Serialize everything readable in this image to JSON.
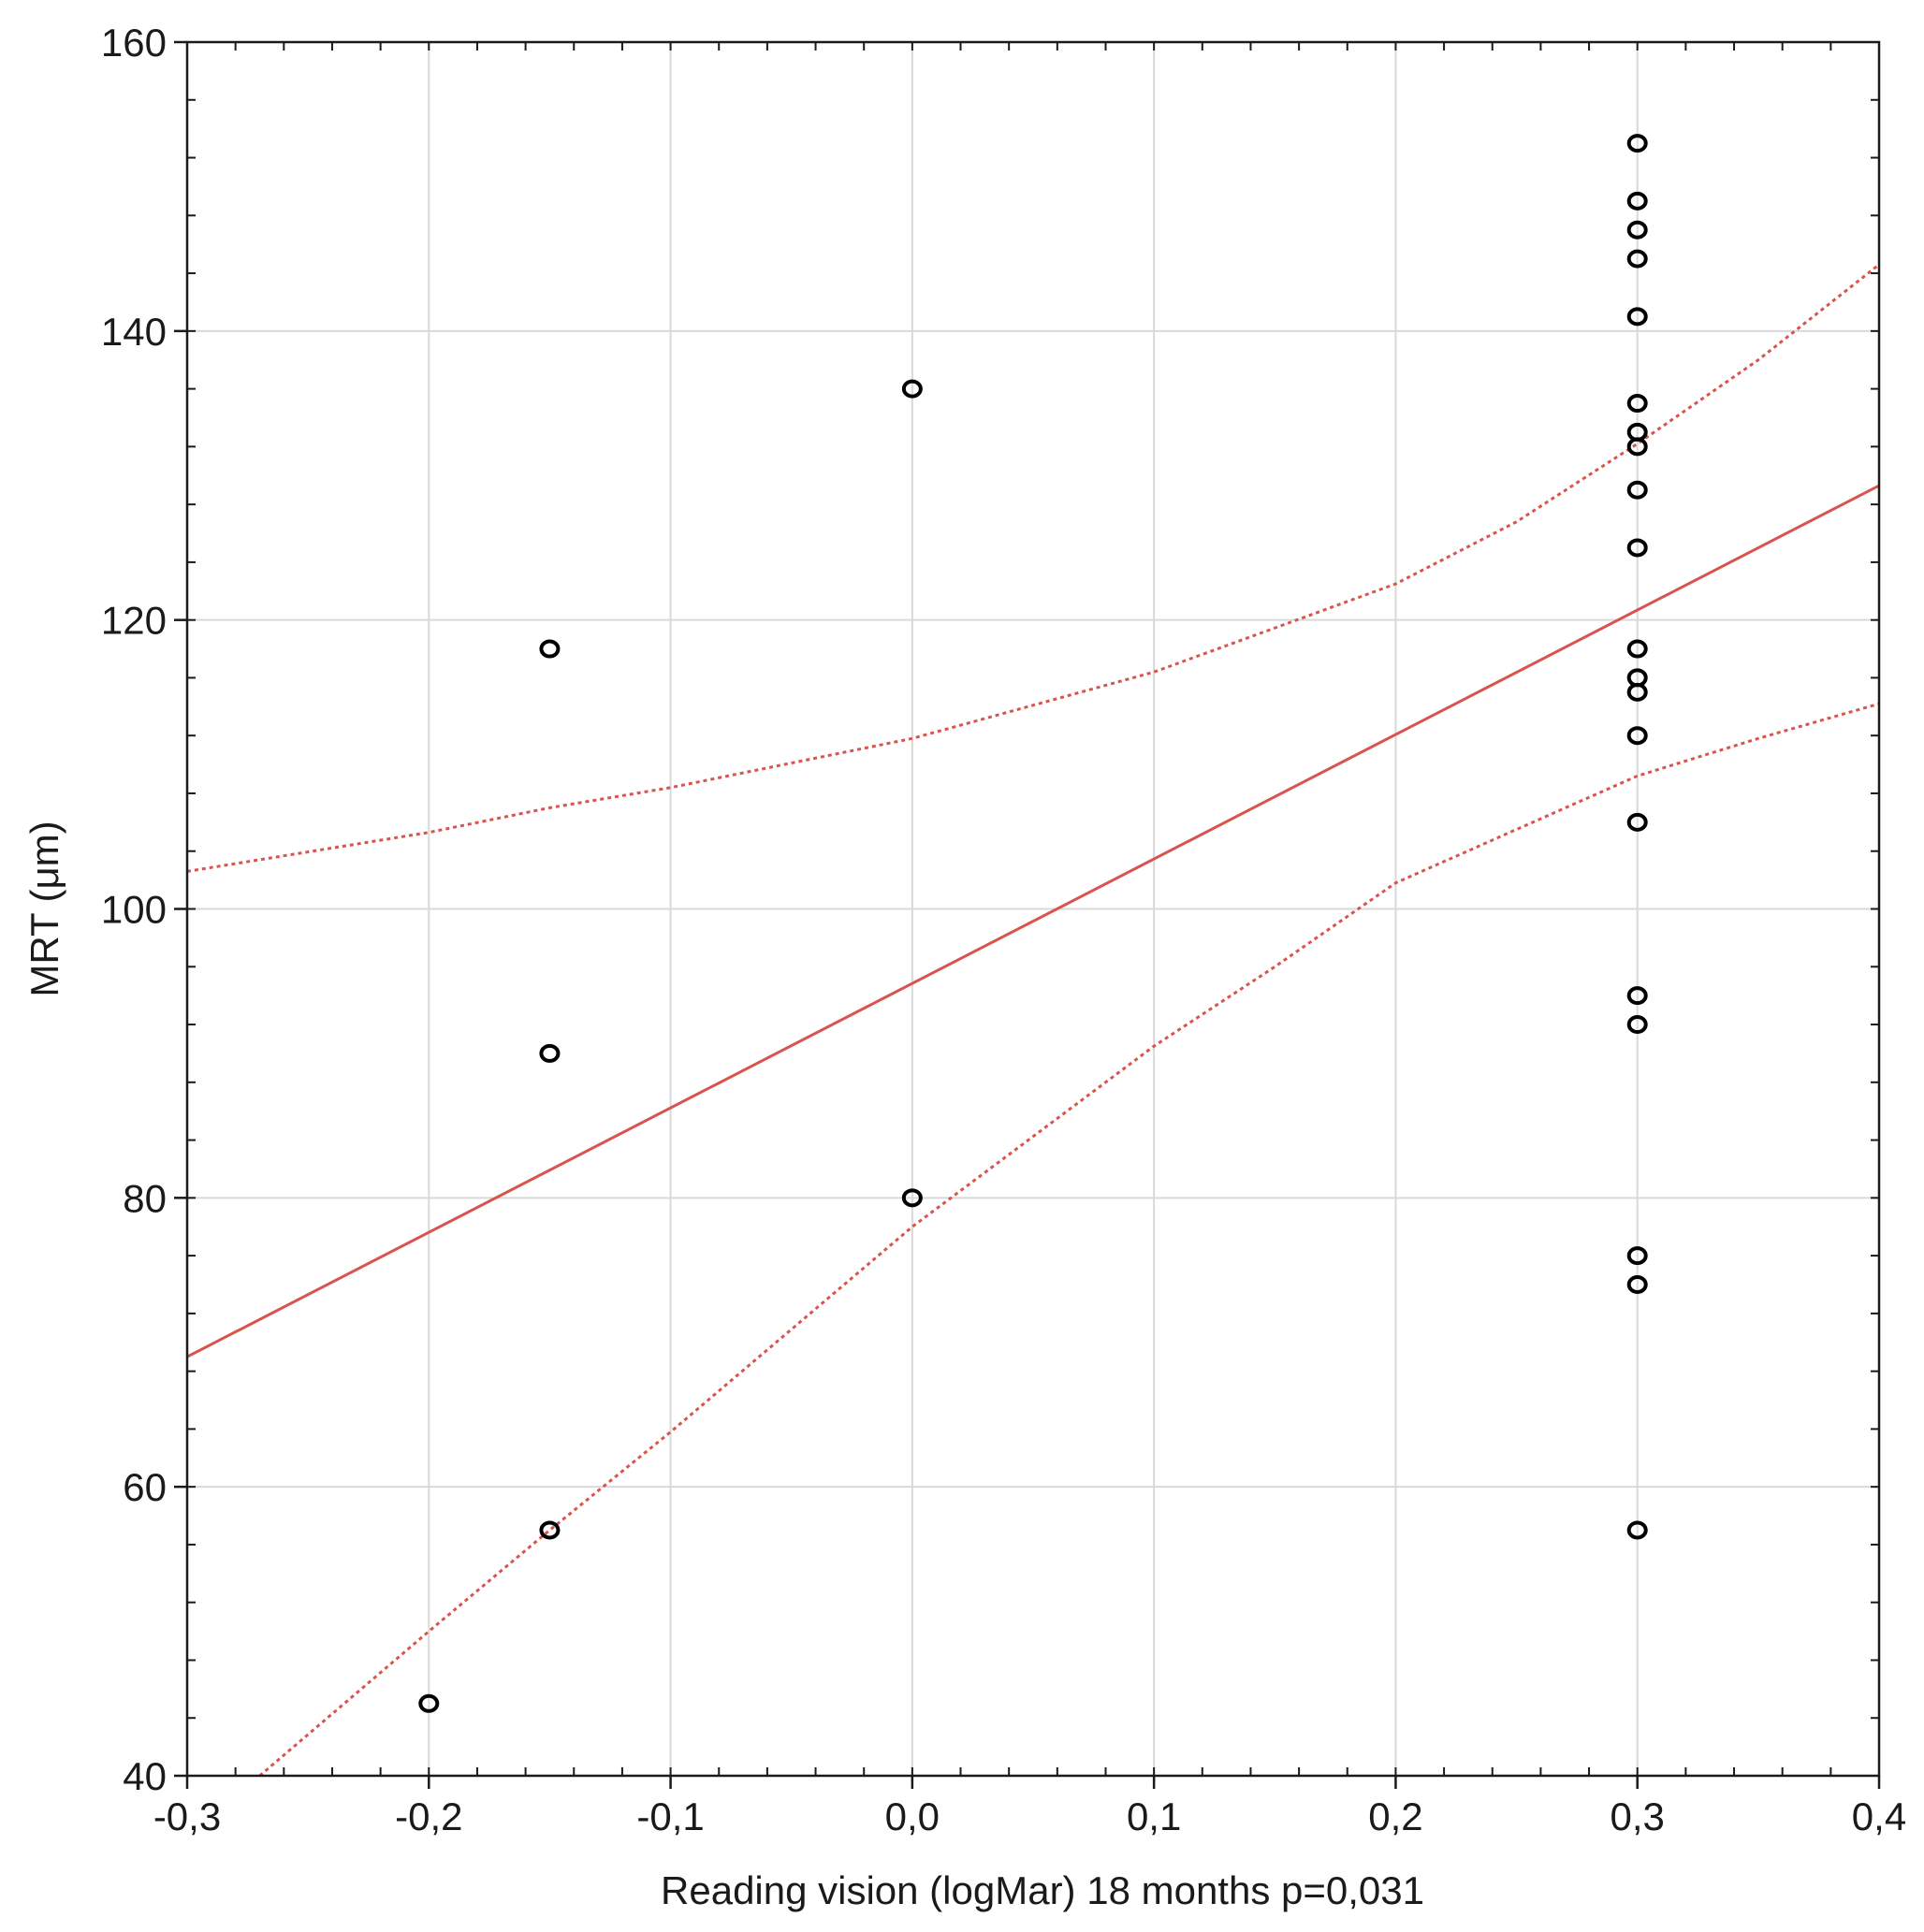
{
  "chart_data": {
    "type": "scatter",
    "title": "",
    "xlabel": "Reading vision (logMar) 18 months  p=0,031",
    "ylabel": "MRT (μm)",
    "xlim": [
      -0.3,
      0.4
    ],
    "ylim": [
      40,
      160
    ],
    "x_ticks": [
      -0.3,
      -0.2,
      -0.1,
      0.0,
      0.1,
      0.2,
      0.3,
      0.4
    ],
    "x_tick_labels": [
      "-0,3",
      "-0,2",
      "-0,1",
      "0,0",
      "0,1",
      "0,2",
      "0,3",
      "0,4"
    ],
    "y_ticks": [
      40,
      60,
      80,
      100,
      120,
      140,
      160
    ],
    "y_tick_labels": [
      "40",
      "60",
      "80",
      "100",
      "120",
      "140",
      "160"
    ],
    "grid": true,
    "points": [
      {
        "x": -0.2,
        "y": 45
      },
      {
        "x": -0.15,
        "y": 118
      },
      {
        "x": -0.15,
        "y": 90
      },
      {
        "x": -0.15,
        "y": 57
      },
      {
        "x": 0.0,
        "y": 136
      },
      {
        "x": 0.0,
        "y": 80
      },
      {
        "x": 0.3,
        "y": 153
      },
      {
        "x": 0.3,
        "y": 149
      },
      {
        "x": 0.3,
        "y": 147
      },
      {
        "x": 0.3,
        "y": 145
      },
      {
        "x": 0.3,
        "y": 141
      },
      {
        "x": 0.3,
        "y": 135
      },
      {
        "x": 0.3,
        "y": 133
      },
      {
        "x": 0.3,
        "y": 132
      },
      {
        "x": 0.3,
        "y": 129
      },
      {
        "x": 0.3,
        "y": 125
      },
      {
        "x": 0.3,
        "y": 118
      },
      {
        "x": 0.3,
        "y": 116
      },
      {
        "x": 0.3,
        "y": 115
      },
      {
        "x": 0.3,
        "y": 112
      },
      {
        "x": 0.3,
        "y": 106
      },
      {
        "x": 0.3,
        "y": 94
      },
      {
        "x": 0.3,
        "y": 92
      },
      {
        "x": 0.3,
        "y": 76
      },
      {
        "x": 0.3,
        "y": 74
      },
      {
        "x": 0.3,
        "y": 57
      }
    ],
    "regression_line": {
      "x": [
        -0.3,
        0.4
      ],
      "y": [
        69,
        129.3
      ]
    },
    "confidence_upper": {
      "x": [
        -0.3,
        -0.2,
        -0.15,
        -0.1,
        0.0,
        0.1,
        0.2,
        0.25,
        0.3,
        0.35,
        0.4
      ],
      "y": [
        102.6,
        105.3,
        107.0,
        108.4,
        111.8,
        116.4,
        122.5,
        126.8,
        132.2,
        138.0,
        144.6
      ]
    },
    "confidence_lower": {
      "x": [
        -0.27,
        -0.2,
        -0.15,
        -0.1,
        0.0,
        0.1,
        0.15,
        0.2,
        0.3,
        0.35,
        0.4
      ],
      "y": [
        40,
        50.0,
        57.0,
        63.8,
        78.0,
        90.5,
        96.0,
        101.8,
        109.2,
        111.8,
        114.2
      ]
    },
    "colors": {
      "points": "#000000",
      "fit_line": "#d9534f",
      "confidence": "#d9534f",
      "grid": "#d9d9d9",
      "axis": "#1a1a1a"
    }
  }
}
